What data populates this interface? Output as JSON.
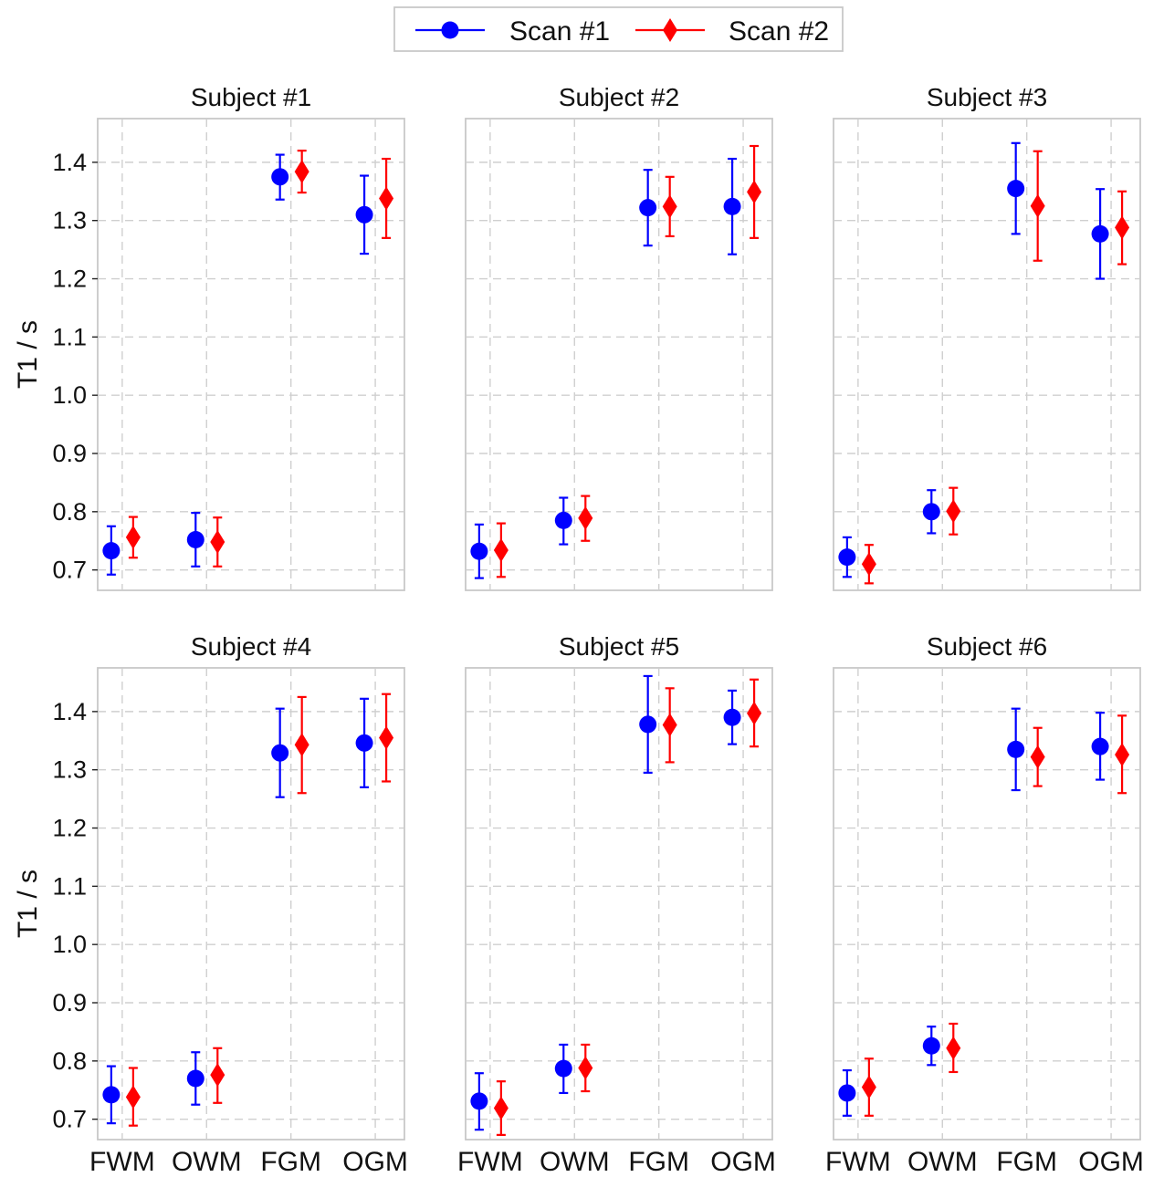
{
  "chart_data": {
    "type": "scatter",
    "variant": "errorbar-grid",
    "layout": {
      "rows": 2,
      "cols": 3
    },
    "ylabel": "T1 / s",
    "ylim": [
      0.665,
      1.475
    ],
    "yticks": [
      0.7,
      0.8,
      0.9,
      1.0,
      1.1,
      1.2,
      1.3,
      1.4
    ],
    "categories": [
      "FWM",
      "OWM",
      "FGM",
      "OGM"
    ],
    "grid": true,
    "legend": {
      "placement": "top-center",
      "entries": [
        {
          "label": "Scan #1",
          "marker": "circle",
          "color": "#0000ff"
        },
        {
          "label": "Scan #2",
          "marker": "diamond",
          "color": "#ff0000"
        }
      ]
    },
    "panels": [
      {
        "title": "Subject #1",
        "series": [
          {
            "name": "Scan #1",
            "values": [
              0.733,
              0.752,
              1.375,
              1.31
            ],
            "err_low": [
              0.692,
              0.706,
              1.336,
              1.243
            ],
            "err_high": [
              0.775,
              0.798,
              1.413,
              1.377
            ]
          },
          {
            "name": "Scan #2",
            "values": [
              0.756,
              0.748,
              1.384,
              1.338
            ],
            "err_low": [
              0.721,
              0.706,
              1.348,
              1.27
            ],
            "err_high": [
              0.791,
              0.79,
              1.42,
              1.406
            ]
          }
        ]
      },
      {
        "title": "Subject #2",
        "series": [
          {
            "name": "Scan #1",
            "values": [
              0.732,
              0.785,
              1.322,
              1.324
            ],
            "err_low": [
              0.686,
              0.744,
              1.257,
              1.242
            ],
            "err_high": [
              0.778,
              0.824,
              1.387,
              1.406
            ]
          },
          {
            "name": "Scan #2",
            "values": [
              0.734,
              0.789,
              1.324,
              1.349
            ],
            "err_low": [
              0.688,
              0.75,
              1.273,
              1.27
            ],
            "err_high": [
              0.78,
              0.827,
              1.375,
              1.428
            ]
          }
        ]
      },
      {
        "title": "Subject #3",
        "series": [
          {
            "name": "Scan #1",
            "values": [
              0.722,
              0.8,
              1.355,
              1.277
            ],
            "err_low": [
              0.688,
              0.763,
              1.277,
              1.2
            ],
            "err_high": [
              0.756,
              0.837,
              1.433,
              1.354
            ]
          },
          {
            "name": "Scan #2",
            "values": [
              0.71,
              0.801,
              1.325,
              1.288
            ],
            "err_low": [
              0.677,
              0.761,
              1.231,
              1.225
            ],
            "err_high": [
              0.743,
              0.841,
              1.419,
              1.35
            ]
          }
        ]
      },
      {
        "title": "Subject #4",
        "series": [
          {
            "name": "Scan #1",
            "values": [
              0.742,
              0.77,
              1.329,
              1.346
            ],
            "err_low": [
              0.693,
              0.725,
              1.253,
              1.27
            ],
            "err_high": [
              0.791,
              0.815,
              1.405,
              1.422
            ]
          },
          {
            "name": "Scan #2",
            "values": [
              0.738,
              0.776,
              1.343,
              1.355
            ],
            "err_low": [
              0.689,
              0.728,
              1.26,
              1.28
            ],
            "err_high": [
              0.788,
              0.822,
              1.425,
              1.43
            ]
          }
        ]
      },
      {
        "title": "Subject #5",
        "series": [
          {
            "name": "Scan #1",
            "values": [
              0.731,
              0.787,
              1.378,
              1.39
            ],
            "err_low": [
              0.682,
              0.745,
              1.295,
              1.344
            ],
            "err_high": [
              0.779,
              0.828,
              1.461,
              1.436
            ]
          },
          {
            "name": "Scan #2",
            "values": [
              0.719,
              0.788,
              1.377,
              1.397
            ],
            "err_low": [
              0.673,
              0.748,
              1.313,
              1.34
            ],
            "err_high": [
              0.765,
              0.828,
              1.44,
              1.455
            ]
          }
        ]
      },
      {
        "title": "Subject #6",
        "series": [
          {
            "name": "Scan #1",
            "values": [
              0.745,
              0.826,
              1.335,
              1.34
            ],
            "err_low": [
              0.706,
              0.793,
              1.265,
              1.283
            ],
            "err_high": [
              0.784,
              0.859,
              1.405,
              1.398
            ]
          },
          {
            "name": "Scan #2",
            "values": [
              0.755,
              0.822,
              1.322,
              1.326
            ],
            "err_low": [
              0.706,
              0.781,
              1.272,
              1.26
            ],
            "err_high": [
              0.804,
              0.864,
              1.372,
              1.393
            ]
          }
        ]
      }
    ]
  }
}
